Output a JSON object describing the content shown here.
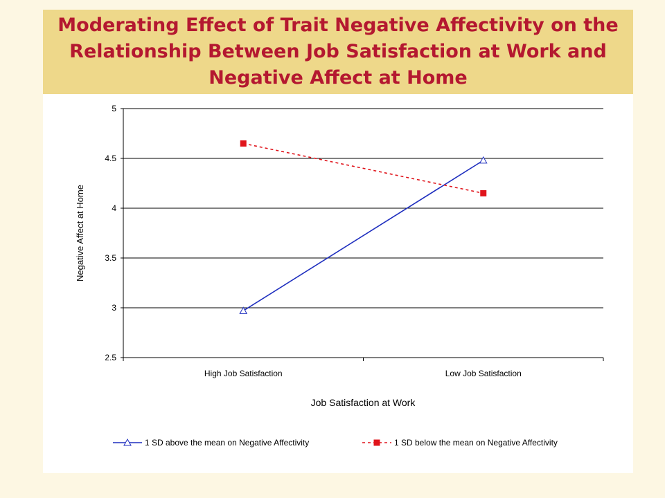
{
  "title": "Moderating Effect of Trait Negative Affectivity on the Relationship Between Job Satisfaction at Work and Negative Affect at Home",
  "colors": {
    "background": "#fdf7e3",
    "title_band": "#eed88a",
    "title_text": "#b41830",
    "series_above": "#1f2fbf",
    "series_below": "#e0141b"
  },
  "chart_data": {
    "type": "line",
    "categories": [
      "High Job Satisfaction",
      "Low Job Satisfaction"
    ],
    "series": [
      {
        "name": "1 SD above the mean on Negative Affectivity",
        "values": [
          2.97,
          4.48
        ],
        "marker": "triangle-open",
        "line_style": "solid"
      },
      {
        "name": "1 SD below the mean on Negative Affectivity",
        "values": [
          4.65,
          4.15
        ],
        "marker": "square-filled",
        "line_style": "dashed"
      }
    ],
    "xlabel": "Job Satisfaction at Work",
    "ylabel": "Negative Affect at Home",
    "ylim": [
      2.5,
      5
    ],
    "yticks": [
      "2.5",
      "3",
      "3.5",
      "4",
      "4.5",
      "5"
    ],
    "grid": true,
    "legend": "bottom"
  }
}
